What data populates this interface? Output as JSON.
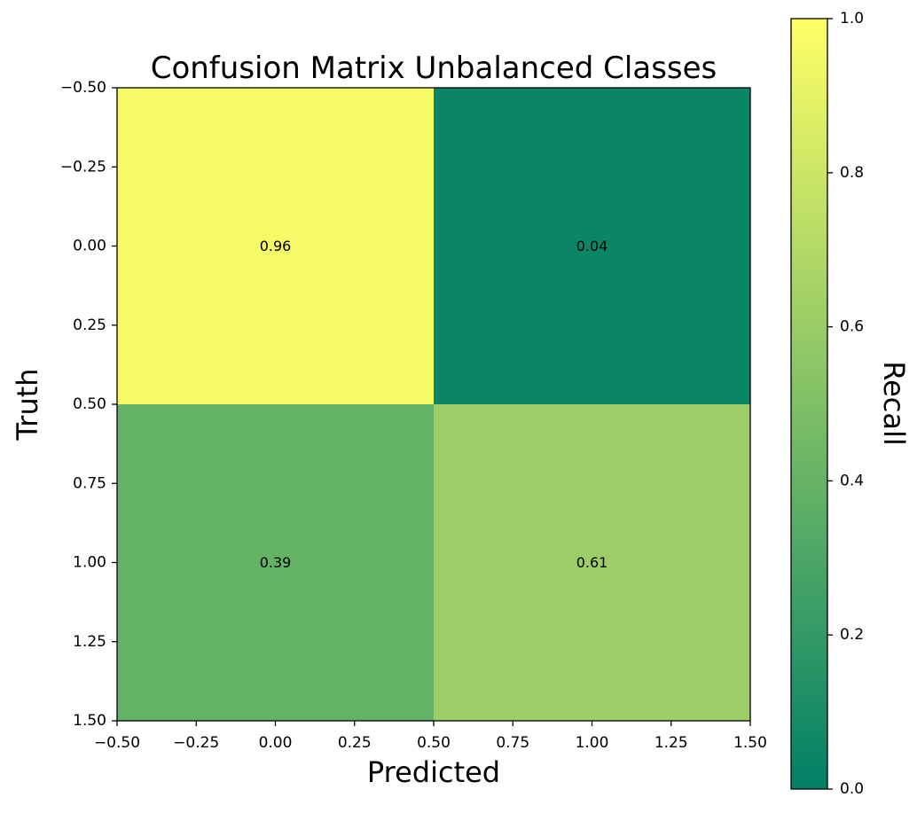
{
  "chart_data": {
    "type": "heatmap",
    "title": "Confusion Matrix Unbalanced Classes",
    "xlabel": "Predicted",
    "ylabel": "Truth",
    "colorbar_label": "Recall",
    "xlim": [
      -0.5,
      1.5
    ],
    "ylim": [
      1.5,
      -0.5
    ],
    "x_ticks": [
      -0.5,
      -0.25,
      0.0,
      0.25,
      0.5,
      0.75,
      1.0,
      1.25,
      1.5
    ],
    "x_tick_labels": [
      "−0.50",
      "−0.25",
      "0.00",
      "0.25",
      "0.50",
      "0.75",
      "1.00",
      "1.25",
      "1.50"
    ],
    "y_ticks": [
      -0.5,
      -0.25,
      0.0,
      0.25,
      0.5,
      0.75,
      1.0,
      1.25,
      1.5
    ],
    "y_tick_labels": [
      "−0.50",
      "−0.25",
      "0.00",
      "0.25",
      "0.50",
      "0.75",
      "1.00",
      "1.25",
      "1.50"
    ],
    "matrix": [
      [
        0.96,
        0.04
      ],
      [
        0.39,
        0.61
      ]
    ],
    "cell_labels": [
      [
        "0.96",
        "0.04"
      ],
      [
        "0.39",
        "0.61"
      ]
    ],
    "colorbar": {
      "range": [
        0.0,
        1.0
      ],
      "ticks": [
        0.0,
        0.2,
        0.4,
        0.6,
        0.8,
        1.0
      ],
      "tick_labels": [
        "0.0",
        "0.2",
        "0.4",
        "0.6",
        "0.8",
        "1.0"
      ],
      "colormap": "summer",
      "color_low": "#008066",
      "color_high": "#ffff66"
    },
    "grid": false
  }
}
